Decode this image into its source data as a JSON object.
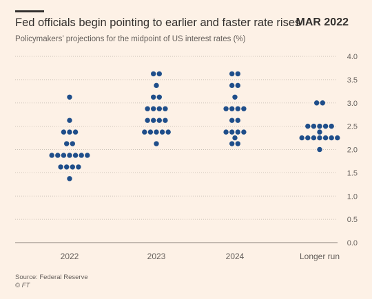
{
  "header": {
    "title": "Fed officials begin pointing to earlier and faster rate rises",
    "date": "MAR 2022",
    "subtitle": "Policymakers’ projections for the midpoint of US interest rates (%)"
  },
  "footer": {
    "source": "Source: Federal Reserve",
    "copyright": "© FT"
  },
  "colors": {
    "dot": "#1f4e8a",
    "grid": "#ccc1b7",
    "text": "#66605c"
  },
  "chart_data": {
    "type": "scatter",
    "subtype": "dot-plot",
    "categories": [
      "2022",
      "2023",
      "2024",
      "Longer run"
    ],
    "ylim": [
      0,
      4
    ],
    "yticks": [
      "0.0",
      "0.5",
      "1.0",
      "1.5",
      "2.0",
      "2.5",
      "3.0",
      "3.5",
      "4.0"
    ],
    "grid": true,
    "series": [
      {
        "category": "2022",
        "points": [
          {
            "y": 3.125,
            "count": 1
          },
          {
            "y": 2.625,
            "count": 1
          },
          {
            "y": 2.375,
            "count": 3
          },
          {
            "y": 2.125,
            "count": 2
          },
          {
            "y": 1.875,
            "count": 7
          },
          {
            "y": 1.625,
            "count": 4
          },
          {
            "y": 1.375,
            "count": 1
          }
        ]
      },
      {
        "category": "2023",
        "points": [
          {
            "y": 3.625,
            "count": 2
          },
          {
            "y": 3.375,
            "count": 1
          },
          {
            "y": 3.125,
            "count": 2
          },
          {
            "y": 2.875,
            "count": 4
          },
          {
            "y": 2.625,
            "count": 4
          },
          {
            "y": 2.375,
            "count": 5
          },
          {
            "y": 2.125,
            "count": 1
          }
        ]
      },
      {
        "category": "2024",
        "points": [
          {
            "y": 3.625,
            "count": 2
          },
          {
            "y": 3.375,
            "count": 2
          },
          {
            "y": 3.125,
            "count": 1
          },
          {
            "y": 2.875,
            "count": 4
          },
          {
            "y": 2.625,
            "count": 2
          },
          {
            "y": 2.375,
            "count": 4
          },
          {
            "y": 2.25,
            "count": 1
          },
          {
            "y": 2.125,
            "count": 2
          }
        ]
      },
      {
        "category": "Longer run",
        "points": [
          {
            "y": 3.0,
            "count": 2
          },
          {
            "y": 2.5,
            "count": 5
          },
          {
            "y": 2.375,
            "count": 1
          },
          {
            "y": 2.25,
            "count": 7
          },
          {
            "y": 2.0,
            "count": 1
          }
        ]
      }
    ]
  }
}
